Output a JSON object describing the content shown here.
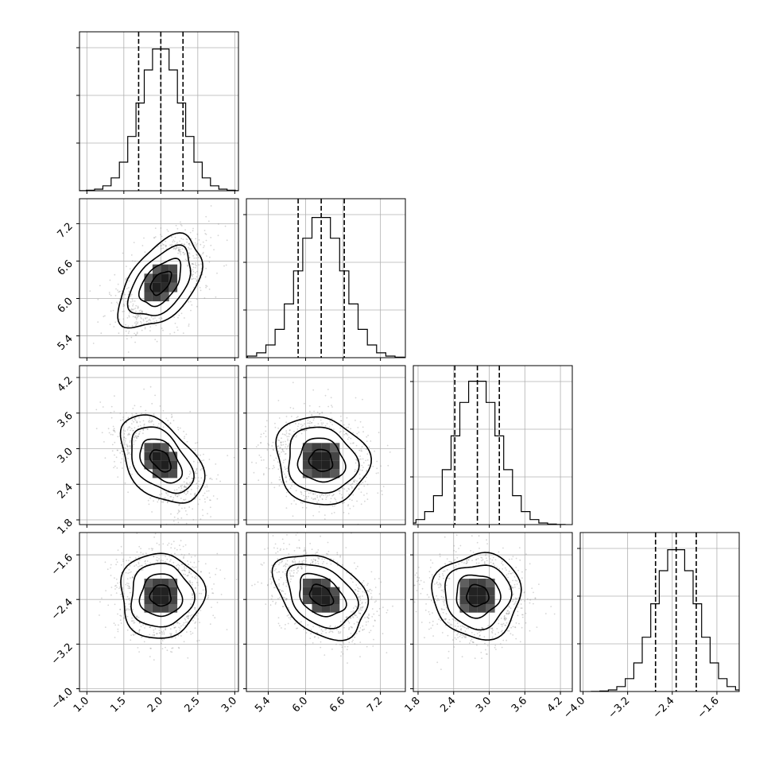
{
  "chart_data": {
    "type": "corner",
    "n_params": 4,
    "parameters": [
      {
        "index": 0,
        "mean": 2.0,
        "std": 0.28,
        "quantiles": [
          1.7,
          2.0,
          2.3
        ],
        "range": [
          0.9,
          3.05
        ],
        "ticks": [
          "1.0",
          "1.5",
          "2.0",
          "2.5",
          "3.0"
        ]
      },
      {
        "index": 1,
        "mean": 6.25,
        "std": 0.37,
        "quantiles": [
          5.88,
          6.25,
          6.62
        ],
        "range": [
          5.05,
          7.6
        ],
        "ticks": [
          "5.4",
          "6.0",
          "6.6",
          "7.2"
        ]
      },
      {
        "index": 2,
        "mean": 2.8,
        "std": 0.37,
        "quantiles": [
          2.42,
          2.8,
          3.17
        ],
        "range": [
          1.72,
          4.4
        ],
        "ticks": [
          "1.8",
          "2.4",
          "3.0",
          "3.6",
          "4.2"
        ]
      },
      {
        "index": 3,
        "mean": -2.33,
        "std": 0.38,
        "quantiles": [
          -2.7,
          -2.33,
          -1.97
        ],
        "range": [
          -4.05,
          -1.2
        ],
        "ticks": [
          "−4.0",
          "−3.2",
          "−2.4",
          "−1.6"
        ]
      }
    ],
    "correlations": [
      {
        "pair": [
          0,
          1
        ],
        "rho": 0.5
      },
      {
        "pair": [
          0,
          2
        ],
        "rho": -0.45
      },
      {
        "pair": [
          1,
          2
        ],
        "rho": -0.1
      },
      {
        "pair": [
          0,
          3
        ],
        "rho": 0.0
      },
      {
        "pair": [
          1,
          3
        ],
        "rho": -0.35
      },
      {
        "pair": [
          2,
          3
        ],
        "rho": 0.0
      }
    ],
    "hist_peak_fractions": [
      0.91,
      0.9,
      0.92,
      0.91
    ],
    "contour_levels_sigma": [
      0.5,
      1.0,
      1.5,
      2.0
    ],
    "grid": true,
    "title": "",
    "xlabel": "",
    "ylabel": ""
  }
}
